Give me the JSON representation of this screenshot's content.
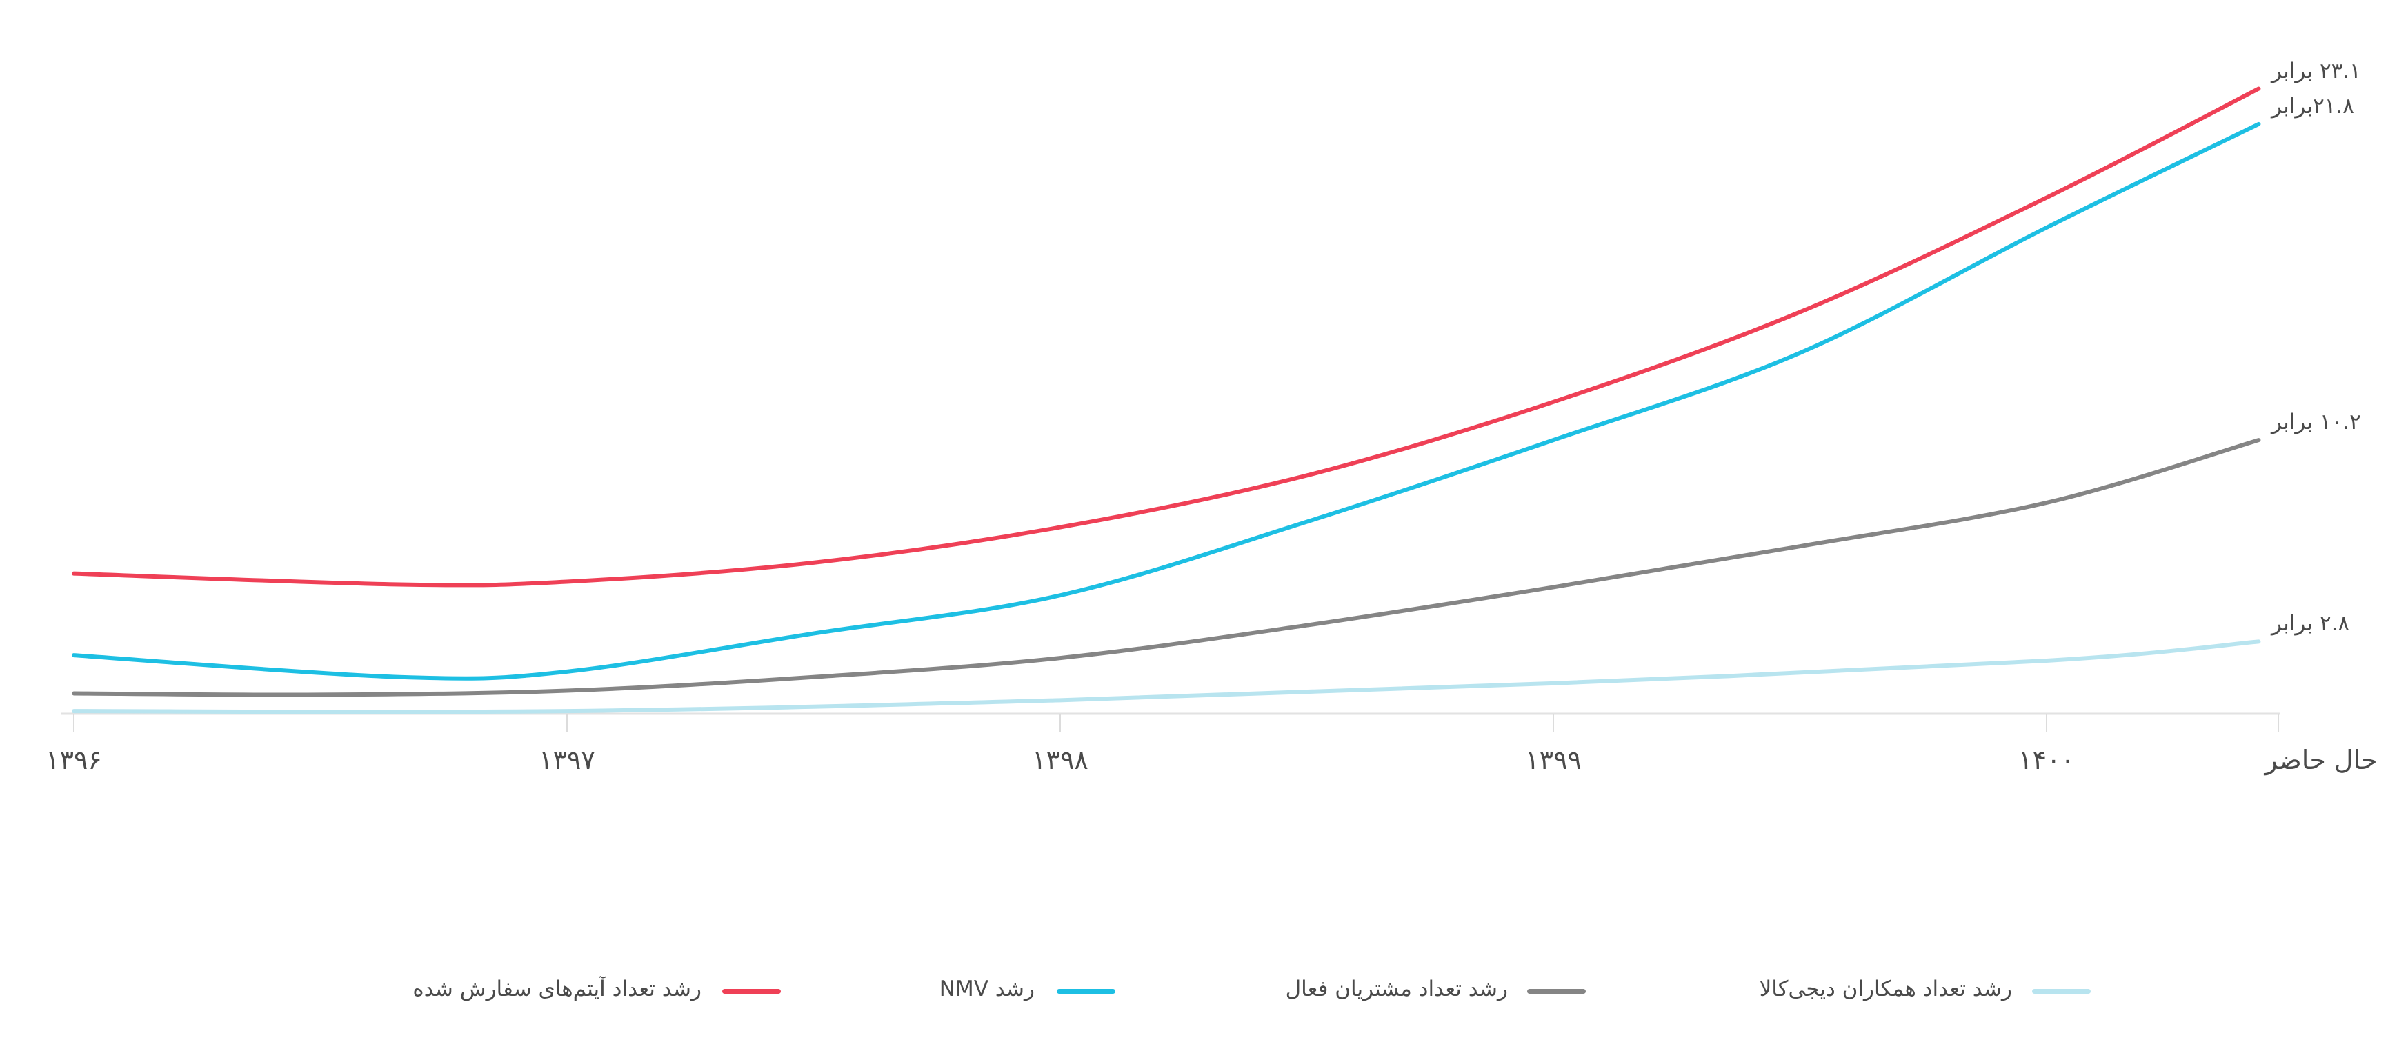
{
  "chart_data": {
    "type": "line",
    "title": "",
    "xlabel": "",
    "ylabel": "",
    "x_ticks": [
      {
        "value": 0,
        "label": "۱۳۹۶"
      },
      {
        "value": 1,
        "label": "۱۳۹۷"
      },
      {
        "value": 2,
        "label": "۱۳۹۸"
      },
      {
        "value": 3,
        "label": "۱۳۹۹"
      },
      {
        "value": 4,
        "label": "۱۴۰۰"
      },
      {
        "value": 4.47,
        "label": "حال حاضر"
      }
    ],
    "xlim": [
      0,
      4.47
    ],
    "ylim": [
      0,
      25
    ],
    "grid": false,
    "legend_position": "bottom",
    "series": [
      {
        "name": "رشد تعداد آیتم‌های سفارش شده",
        "color": "#EF4056",
        "x": [
          0,
          0.66,
          1,
          1.5,
          2,
          2.5,
          3,
          3.5,
          4,
          4.43
        ],
        "values": [
          5.3,
          4.9,
          5.0,
          5.7,
          7.0,
          8.9,
          11.6,
          14.9,
          19.1,
          23.1
        ],
        "end_label": "۲۳.۱ برابر"
      },
      {
        "name": "رشد NMV",
        "color": "#1DBFE3",
        "x": [
          0,
          0.66,
          1,
          1.5,
          2,
          2.5,
          3,
          3.5,
          4,
          4.43
        ],
        "values": [
          2.3,
          1.5,
          1.7,
          3.1,
          4.5,
          7.2,
          10.2,
          13.4,
          18.0,
          21.8
        ],
        "end_label": "۲۱.۸برابر"
      },
      {
        "name": "رشد تعداد مشتریان فعال",
        "color": "#858585",
        "x": [
          0,
          0.5,
          1,
          1.5,
          2,
          2.5,
          3,
          3.5,
          4,
          4.43
        ],
        "values": [
          0.9,
          0.85,
          1.0,
          1.5,
          2.2,
          3.4,
          4.8,
          6.3,
          7.9,
          10.2
        ],
        "end_label": "۱۰.۲ برابر"
      },
      {
        "name": "رشد تعداد همکاران دیجی‌کالا",
        "color": "#B8E4EF",
        "x": [
          0,
          1,
          2,
          3,
          4,
          4.43
        ],
        "values": [
          0.25,
          0.25,
          0.65,
          1.27,
          2.1,
          2.8
        ],
        "end_label": "۲.۸ برابر"
      }
    ]
  }
}
